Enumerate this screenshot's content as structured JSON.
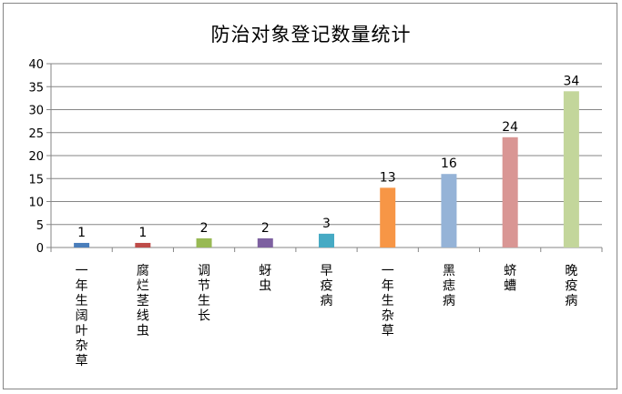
{
  "chart_data": {
    "type": "bar",
    "title": "防治对象登记数量统计",
    "categories": [
      "一年生阔叶杂草",
      "腐烂茎线虫",
      "调节生长",
      "蚜虫",
      "早疫病",
      "一年生杂草",
      "黑痣病",
      "蛴螬",
      "晚疫病"
    ],
    "values": [
      1,
      1,
      2,
      2,
      3,
      13,
      16,
      24,
      34
    ],
    "colors": [
      "#4a7ebb",
      "#be4b48",
      "#98b954",
      "#7d60a0",
      "#46aac4",
      "#f79646",
      "#95b3d7",
      "#d99694",
      "#c3d69b"
    ],
    "ylim": [
      0,
      40
    ],
    "yticks": [
      0,
      5,
      10,
      15,
      20,
      25,
      30,
      35,
      40
    ],
    "xlabel": "",
    "ylabel": "",
    "grid": true,
    "legend": "none"
  }
}
